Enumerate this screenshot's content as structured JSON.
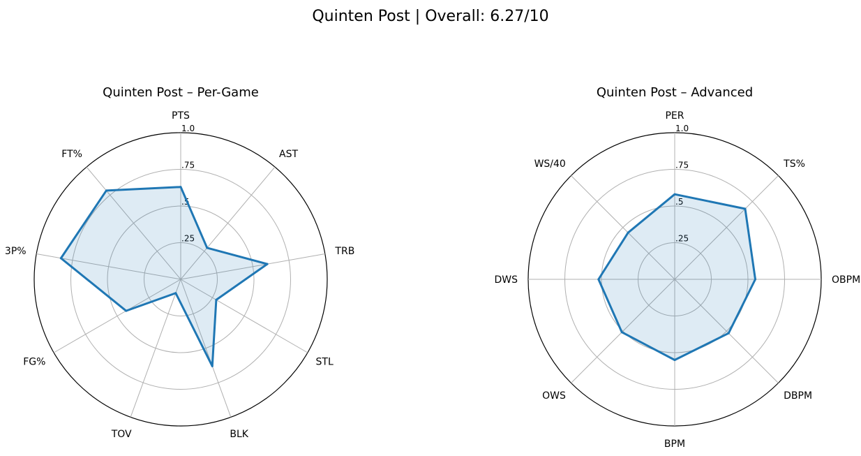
{
  "figure": {
    "title": "Quinten Post | Overall: 6.27/10"
  },
  "colors": {
    "line": "#1f77b4",
    "fill": "#1f77b4",
    "grid": "#b0b0b0",
    "frame": "#000000"
  },
  "chart_data": [
    {
      "type": "radar",
      "title": "Quinten Post – Per-Game",
      "categories": [
        "PTS",
        "AST",
        "TRB",
        "STL",
        "BLK",
        "TOV",
        "FG%",
        "3P%",
        "FT%"
      ],
      "values": [
        0.63,
        0.28,
        0.6,
        0.28,
        0.63,
        0.1,
        0.43,
        0.83,
        0.79
      ],
      "rlim": [
        0,
        1.0
      ],
      "rticks": [
        0.25,
        0.5,
        0.75,
        1.0
      ],
      "rtick_labels": [
        ".25",
        ".5",
        ".75",
        "1.0"
      ],
      "grid": true
    },
    {
      "type": "radar",
      "title": "Quinten Post – Advanced",
      "categories": [
        "PER",
        "TS%",
        "OBPM",
        "DBPM",
        "BPM",
        "OWS",
        "DWS",
        "WS/40"
      ],
      "values": [
        0.58,
        0.68,
        0.55,
        0.52,
        0.55,
        0.51,
        0.52,
        0.45
      ],
      "rlim": [
        0,
        1.0
      ],
      "rticks": [
        0.25,
        0.5,
        0.75,
        1.0
      ],
      "rtick_labels": [
        ".25",
        ".5",
        ".75",
        "1.0"
      ],
      "grid": true
    }
  ]
}
